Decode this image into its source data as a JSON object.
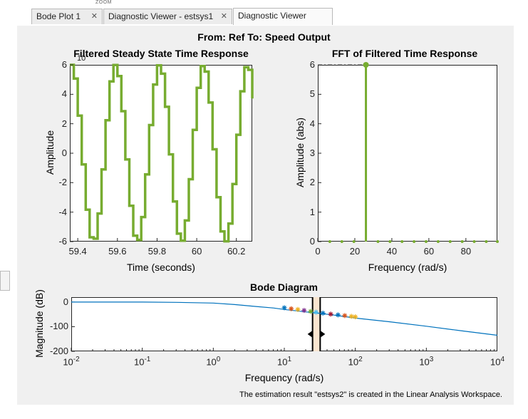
{
  "tabs": [
    {
      "label": "Bode Plot 1",
      "close": "✕"
    },
    {
      "label": "Diagnostic Viewer - estsys1",
      "close": "✕"
    },
    {
      "label": "Diagnostic Viewer",
      "close": ""
    }
  ],
  "tabstrip_toplabel": "ZOOM",
  "figure_title": "From: Ref  To: Speed Output",
  "colors": {
    "green": "#77ac30",
    "bode_line": "#0072bd",
    "axes": "#262626"
  },
  "status_message": "The estimation result \"estsys2\" is created in the Linear Analysis Workspace.",
  "chart_data": [
    {
      "type": "line",
      "title": "Filtered Steady State Time Response",
      "xlabel": "Time (seconds)",
      "ylabel": "Amplitude",
      "exponent_label": "10",
      "xlim": [
        59.36,
        60.28
      ],
      "ylim": [
        -6,
        6
      ],
      "xticks": [
        59.4,
        59.6,
        59.8,
        60,
        60.2
      ],
      "xtick_labels": [
        "59.4",
        "59.6",
        "59.8",
        "60",
        "60.2"
      ],
      "yticks": [
        -6,
        -4,
        -2,
        0,
        2,
        4,
        6
      ],
      "ytick_labels": [
        "-6",
        "-4",
        "-2",
        "0",
        "2",
        "4",
        "6"
      ],
      "series": [
        {
          "amplitude": 6,
          "frequency_rad_s": 28.3,
          "peak_time": 59.36,
          "staircase_step_s": 0.02,
          "color": "#77ac30"
        }
      ]
    },
    {
      "type": "bar",
      "title": "FFT of Filtered Time Response",
      "xlabel": "Frequency (rad/s)",
      "ylabel": "Amplitude (abs)",
      "exponent_label": "",
      "xlim": [
        0,
        97
      ],
      "ylim": [
        0,
        6
      ],
      "xticks": [
        0,
        20,
        40,
        60,
        80
      ],
      "xtick_labels": [
        "0",
        "20",
        "40",
        "60",
        "80"
      ],
      "yticks": [
        0,
        1,
        2,
        3,
        4,
        5,
        6
      ],
      "ytick_labels": [
        "0",
        "1",
        "2",
        "3",
        "4",
        "5",
        "6"
      ],
      "x": [
        6.5,
        13,
        19.5,
        26,
        32.5,
        39,
        45.5,
        52,
        58.5,
        65,
        71.5,
        78,
        84.5,
        91,
        97
      ],
      "values": [
        0,
        0,
        0,
        6,
        0,
        0,
        0,
        0,
        0,
        0,
        0,
        0,
        0,
        0,
        0
      ],
      "peak_marker_line": 6
    },
    {
      "type": "line",
      "title": "Bode Diagram",
      "xlabel": "Frequency  (rad/s)",
      "ylabel": "Magnitude (dB)",
      "xscale": "log",
      "xlim": [
        0.01,
        10000
      ],
      "ylim": [
        -200,
        20
      ],
      "xticks": [
        0.01,
        0.1,
        1,
        10,
        100,
        1000,
        10000
      ],
      "xtick_base": "10",
      "xtick_exponents": [
        "-2",
        "-1",
        "0",
        "1",
        "2",
        "3",
        "4"
      ],
      "yticks": [
        0,
        -100,
        -200
      ],
      "ytick_labels": [
        "0",
        "-100",
        "-200"
      ],
      "series": [
        {
          "x": [
            0.01,
            0.04,
            0.1,
            0.3,
            1,
            2,
            4,
            7,
            10,
            20,
            30,
            50,
            100,
            300,
            1000,
            3000,
            10000
          ],
          "values": [
            0,
            0,
            0,
            -1,
            -4,
            -10,
            -18,
            -24,
            -30,
            -40,
            -45,
            -53,
            -65,
            -80,
            -98,
            -116,
            -135
          ]
        }
      ],
      "markers": {
        "x": [
          10,
          12.5,
          15.5,
          19,
          23.5,
          28,
          35,
          45,
          57,
          71,
          88,
          100
        ],
        "values": [
          -23,
          -27,
          -30,
          -34,
          -38,
          -41,
          -45,
          -49,
          -52,
          -55,
          -58,
          -60
        ],
        "colors": [
          "#0072bd",
          "#d95319",
          "#edb120",
          "#7e2f8e",
          "#77ac30",
          "#4dbeee",
          "#0072bd",
          "#a2142f",
          "#0072bd",
          "#d95319",
          "#edb120",
          "#edb120"
        ]
      },
      "selection_band": {
        "from": 25,
        "to": 32
      }
    }
  ]
}
